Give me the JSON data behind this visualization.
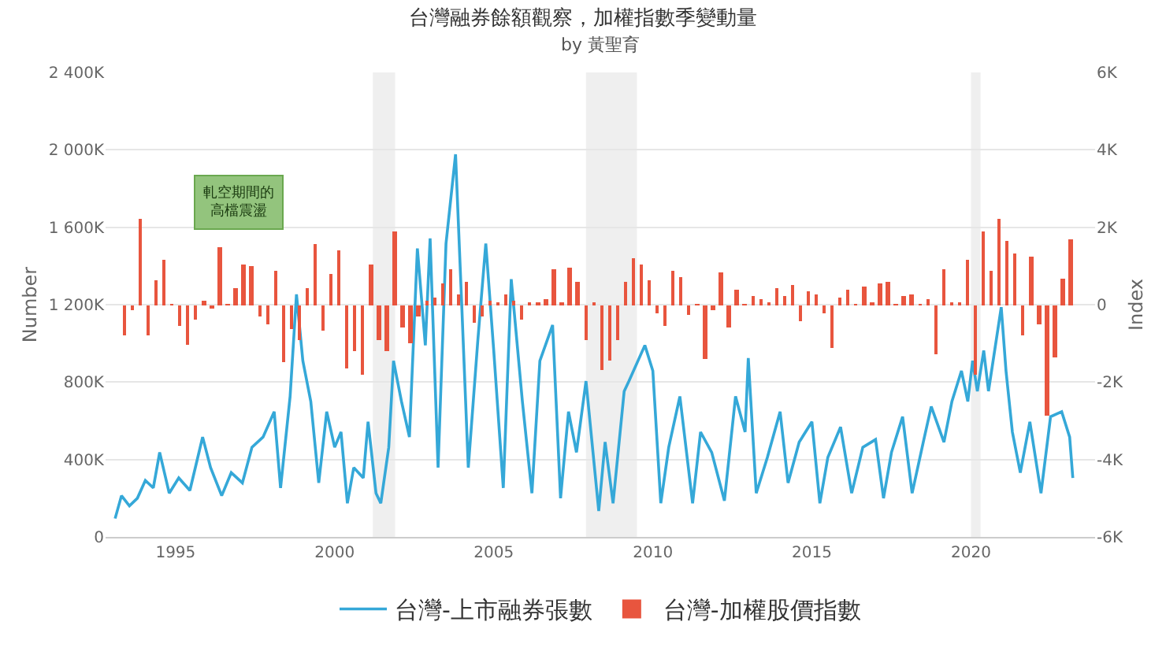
{
  "chart_data": {
    "type": "line",
    "title": "台灣融券餘額觀察，加權指數季變動量",
    "subtitle": "by 黃聖育",
    "ylabel": "Number",
    "y2label": "Index",
    "annotations": [
      "軋空期間的高檔震盪"
    ],
    "xlim": [
      1992.8,
      2023.9
    ],
    "xticks": [
      1995,
      2000,
      2005,
      2010,
      2015,
      2020
    ],
    "ylim": [
      0,
      2400
    ],
    "yticks": [
      0,
      {
        "value": 400,
        "label": "400K"
      },
      {
        "value": 800,
        "label": "800K"
      },
      {
        "value": 1200,
        "label": "1 200K"
      },
      {
        "value": 1600,
        "label": "1 600K"
      },
      {
        "value": 2000,
        "label": "2 000K"
      },
      {
        "value": 2400,
        "label": "2 400K"
      }
    ],
    "y2lim": [
      -6,
      6
    ],
    "y2ticks": [
      {
        "value": -6,
        "label": "-6K"
      },
      {
        "value": -4,
        "label": "-4K"
      },
      {
        "value": -2,
        "label": "-2K"
      },
      0,
      {
        "value": 2,
        "label": "2K"
      },
      {
        "value": 4,
        "label": "4K"
      },
      {
        "value": 6,
        "label": "6K"
      }
    ],
    "grid": "y",
    "legend": "bottom",
    "marker": "none",
    "line_style": "solid",
    "bands": [
      {
        "axis": "x",
        "from": 2001.2,
        "to": 2001.9,
        "color": "#efefef"
      },
      {
        "axis": "x",
        "from": 2007.9,
        "to": 2009.5,
        "color": "#efefef"
      },
      {
        "axis": "x",
        "from": 2020.0,
        "to": 2020.3,
        "color": "#efefef"
      }
    ],
    "series": [
      {
        "name": "台灣-上市融券張數",
        "color": "#35a8d8",
        "x": [
          1993.1,
          1993.3,
          1993.55,
          1993.8,
          1994.05,
          1994.3,
          1994.5,
          1994.8,
          1995.1,
          1995.45,
          1995.85,
          1996.1,
          1996.45,
          1996.75,
          1997.1,
          1997.4,
          1997.75,
          1998.1,
          1998.3,
          1998.6,
          1998.8,
          1999.0,
          1999.25,
          1999.5,
          1999.75,
          2000.0,
          2000.2,
          2000.4,
          2000.6,
          2000.9,
          2001.05,
          2001.3,
          2001.45,
          2001.7,
          2001.85,
          2002.1,
          2002.35,
          2002.6,
          2002.85,
          2003.0,
          2003.25,
          2003.5,
          2003.8,
          2004.0,
          2004.2,
          2004.5,
          2004.75,
          2005.0,
          2005.3,
          2005.55,
          2005.9,
          2006.2,
          2006.45,
          2006.85,
          2007.1,
          2007.35,
          2007.6,
          2007.9,
          2008.3,
          2008.5,
          2008.75,
          2009.1,
          2009.25,
          2009.75,
          2010.0,
          2010.25,
          2010.5,
          2010.85,
          2011.25,
          2011.5,
          2011.85,
          2012.25,
          2012.6,
          2012.9,
          2013.0,
          2013.25,
          2013.6,
          2014.0,
          2014.25,
          2014.6,
          2015.0,
          2015.25,
          2015.5,
          2015.9,
          2016.25,
          2016.6,
          2017.0,
          2017.25,
          2017.5,
          2017.85,
          2018.15,
          2018.5,
          2018.75,
          2019.15,
          2019.4,
          2019.7,
          2019.9,
          2020.05,
          2020.2,
          2020.4,
          2020.55,
          2020.95,
          2021.1,
          2021.3,
          2021.55,
          2021.85,
          2022.2,
          2022.5,
          2022.85,
          2023.1,
          2023.2
        ],
        "values": [
          95,
          213,
          160,
          200,
          292,
          253,
          437,
          226,
          305,
          240,
          516,
          358,
          213,
          332,
          279,
          463,
          516,
          647,
          253,
          726,
          1253,
          910,
          700,
          279,
          647,
          463,
          542,
          174,
          358,
          305,
          595,
          226,
          174,
          463,
          910,
          700,
          516,
          1490,
          990,
          1542,
          358,
          1516,
          1977,
          1174,
          358,
          1016,
          1516,
          963,
          253,
          1332,
          700,
          226,
          910,
          1095,
          200,
          647,
          437,
          805,
          134,
          490,
          174,
          753,
          805,
          990,
          858,
          174,
          463,
          726,
          174,
          542,
          437,
          187,
          726,
          542,
          924,
          226,
          411,
          647,
          279,
          490,
          595,
          174,
          411,
          568,
          226,
          463,
          503,
          200,
          437,
          621,
          226,
          490,
          674,
          490,
          700,
          858,
          700,
          910,
          753,
          963,
          753,
          1187,
          858,
          542,
          332,
          595,
          226,
          621,
          647,
          516,
          305
        ]
      },
      {
        "name": "台灣-加權股價指數",
        "type": "bar",
        "axis": "y2",
        "color": "#e8553e",
        "x": [
          1993.4,
          1993.65,
          1993.9,
          1994.15,
          1994.4,
          1994.65,
          1994.9,
          1995.15,
          1995.4,
          1995.65,
          1995.9,
          1996.15,
          1996.4,
          1996.65,
          1996.9,
          1997.15,
          1997.4,
          1997.65,
          1997.9,
          1998.15,
          1998.4,
          1998.65,
          1998.9,
          1999.15,
          1999.4,
          1999.65,
          1999.9,
          2000.15,
          2000.4,
          2000.65,
          2000.9,
          2001.15,
          2001.4,
          2001.65,
          2001.9,
          2002.15,
          2002.4,
          2002.65,
          2002.9,
          2003.15,
          2003.4,
          2003.65,
          2003.9,
          2004.15,
          2004.4,
          2004.65,
          2004.9,
          2005.15,
          2005.4,
          2005.65,
          2005.9,
          2006.15,
          2006.4,
          2006.65,
          2006.9,
          2007.15,
          2007.4,
          2007.65,
          2007.9,
          2008.15,
          2008.4,
          2008.65,
          2008.9,
          2009.15,
          2009.4,
          2009.65,
          2009.9,
          2010.15,
          2010.4,
          2010.65,
          2010.9,
          2011.15,
          2011.4,
          2011.65,
          2011.9,
          2012.15,
          2012.4,
          2012.65,
          2012.9,
          2013.15,
          2013.4,
          2013.65,
          2013.9,
          2014.15,
          2014.4,
          2014.65,
          2014.9,
          2015.15,
          2015.4,
          2015.65,
          2015.9,
          2016.15,
          2016.4,
          2016.65,
          2016.9,
          2017.15,
          2017.4,
          2017.65,
          2017.9,
          2018.15,
          2018.4,
          2018.65,
          2018.9,
          2019.15,
          2019.4,
          2019.65,
          2019.9,
          2020.15,
          2020.4,
          2020.65,
          2020.9,
          2021.15,
          2021.4,
          2021.65,
          2021.9,
          2022.15,
          2022.4,
          2022.65,
          2022.9,
          2023.15
        ],
        "values": [
          -0.81,
          -0.13,
          2.2,
          -0.8,
          0.65,
          1.14,
          0.02,
          -0.56,
          -1.05,
          -0.39,
          0.1,
          -0.1,
          1.49,
          0.02,
          0.42,
          1.05,
          0.98,
          -0.3,
          -0.52,
          0.86,
          -1.5,
          -0.65,
          -0.9,
          0.44,
          1.57,
          -0.69,
          0.81,
          1.39,
          -1.63,
          -1.2,
          -1.83,
          1.02,
          -0.92,
          -1.18,
          1.88,
          -0.6,
          -1.0,
          -0.3,
          0.1,
          0.2,
          0.55,
          0.92,
          0.26,
          0.59,
          -0.46,
          -0.3,
          0.1,
          0.05,
          0.26,
          0.1,
          -0.4,
          0.05,
          0.05,
          0.13,
          0.92,
          0.05,
          0.97,
          0.58,
          -0.9,
          0.05,
          -1.7,
          -1.44,
          -0.9,
          0.59,
          1.2,
          1.05,
          0.65,
          -0.24,
          -0.56,
          0.86,
          0.71,
          -0.26,
          0.02,
          -1.41,
          -0.13,
          0.85,
          -0.6,
          0.39,
          0.02,
          0.21,
          0.13,
          0.07,
          0.42,
          0.21,
          0.5,
          -0.42,
          0.33,
          0.26,
          -0.22,
          -1.11,
          0.17,
          0.39,
          0.02,
          0.47,
          0.05,
          0.55,
          0.58,
          0.02,
          0.24,
          0.26,
          0.02,
          0.16,
          -1.27,
          0.92,
          0.07,
          0.07,
          1.14,
          -1.83,
          1.88,
          0.88,
          2.2,
          1.65,
          1.31,
          -0.81,
          1.25,
          -0.5,
          -2.85,
          -1.37,
          0.68,
          1.69
        ]
      }
    ]
  }
}
